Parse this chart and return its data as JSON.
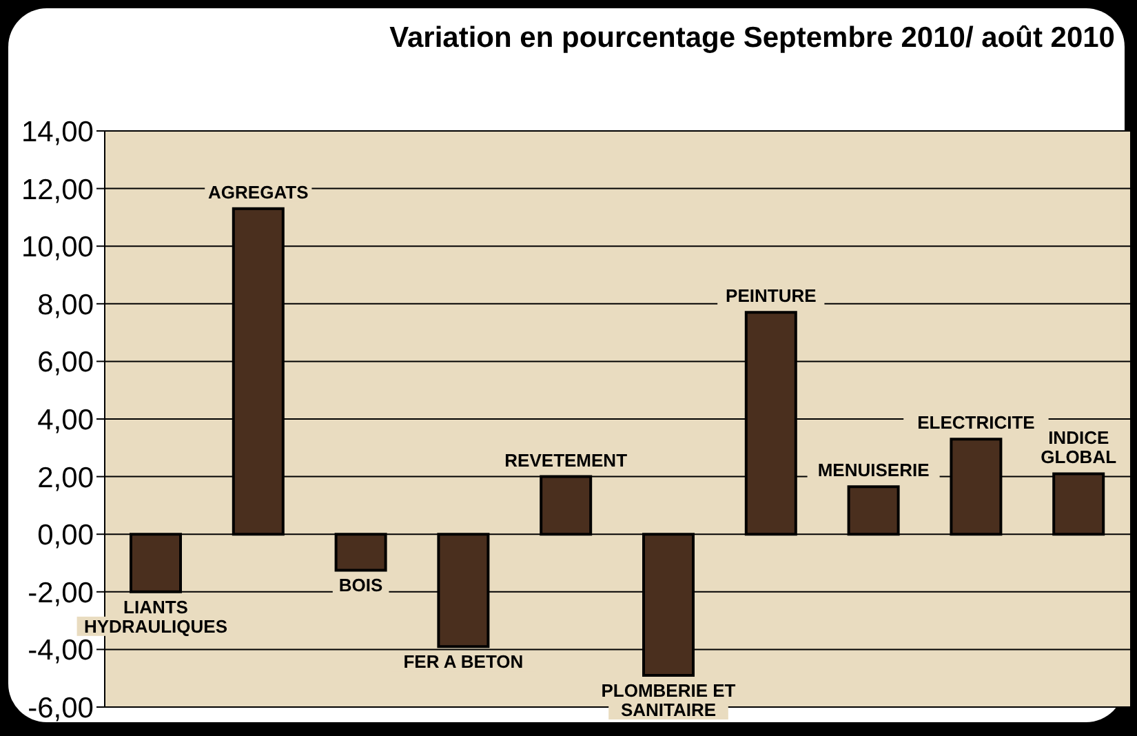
{
  "chart_data": {
    "type": "bar",
    "title": "Variation en pourcentage Septembre 2010/ août 2010",
    "categories": [
      "LIANTS HYDRAULIQUES",
      "AGREGATS",
      "BOIS",
      "FER A BETON",
      "REVETEMENT",
      "PLOMBERIE ET SANITAIRE",
      "PEINTURE",
      "MENUISERIE",
      "ELECTRICITE",
      "INDICE GLOBAL"
    ],
    "values": [
      -2.0,
      11.3,
      -1.25,
      -3.9,
      2.0,
      -4.9,
      7.7,
      1.65,
      3.3,
      2.1
    ],
    "color": "#4a2f1e",
    "ylim": [
      -6,
      14
    ],
    "yticks": [
      {
        "value": -6,
        "label": "-6,00"
      },
      {
        "value": -4,
        "label": "-4,00"
      },
      {
        "value": -2,
        "label": "-2,00"
      },
      {
        "value": 0,
        "label": "0,00"
      },
      {
        "value": 2,
        "label": "2,00"
      },
      {
        "value": 4,
        "label": "4,00"
      },
      {
        "value": 6,
        "label": "6,00"
      },
      {
        "value": 8,
        "label": "8,00"
      },
      {
        "value": 10,
        "label": "10,00"
      },
      {
        "value": 12,
        "label": "12,00"
      },
      {
        "value": 14,
        "label": "14,00"
      }
    ],
    "grid": "y",
    "legend": false,
    "tick_labels": "y"
  }
}
